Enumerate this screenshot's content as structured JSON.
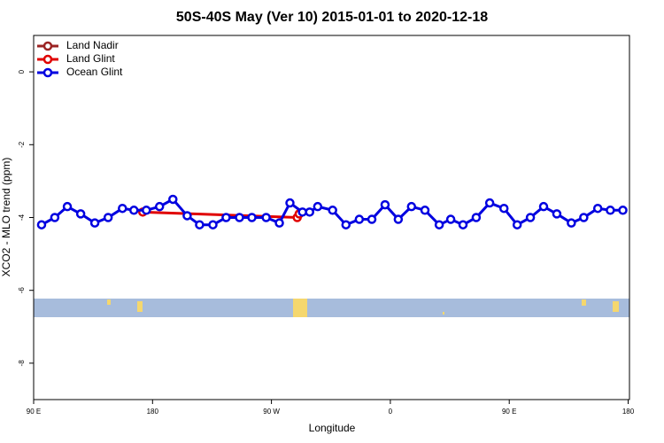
{
  "chart_data": {
    "type": "line",
    "title": "50S-40S May (Ver 10)   2015-01-01 to 2020-12-18",
    "x_label": "Longitude",
    "y_label": "XCO2 - MLO trend (ppm)",
    "xlim": [
      90,
      541
    ],
    "ylim": [
      -9,
      1
    ],
    "xticks": [
      {
        "value": 90,
        "label": "90 E"
      },
      180,
      {
        "value": 270,
        "label": "90 W"
      },
      {
        "value": 360,
        "label": "0"
      },
      {
        "value": 450,
        "label": "90 E"
      },
      {
        "value": 540,
        "label": "180"
      }
    ],
    "yticks": [
      -8,
      -6,
      -4,
      -2,
      0
    ],
    "legend": "top-left",
    "series": [
      {
        "name": "Land Nadir",
        "color": "#9b2323",
        "x": [],
        "values": []
      },
      {
        "name": "Land Glint",
        "color": "#e00000",
        "x": [
          172.6,
          289.5,
          291
        ],
        "values": [
          -3.85,
          -4.0,
          -3.9
        ]
      },
      {
        "name": "Ocean Glint",
        "color": "#0000e0",
        "x": [
          96,
          106,
          115.5,
          125.6,
          136.3,
          146.4,
          157.2,
          165.9,
          175.3,
          185.3,
          195.4,
          206.2,
          215.6,
          225.7,
          235.7,
          245.8,
          255.2,
          266,
          276,
          284,
          293.5,
          298.9,
          305,
          316.3,
          326.4,
          336.5,
          346,
          356,
          366,
          376,
          386.2,
          397,
          405.7,
          415,
          425,
          435.2,
          446,
          456,
          466,
          476,
          486,
          497,
          506.4,
          517,
          526.5,
          536
        ],
        "values": [
          -4.2,
          -4.0,
          -3.7,
          -3.9,
          -4.15,
          -4.0,
          -3.75,
          -3.8,
          -3.8,
          -3.7,
          -3.5,
          -3.95,
          -4.2,
          -4.2,
          -4.0,
          -4.0,
          -4.0,
          -4.0,
          -4.15,
          -3.6,
          -3.85,
          -3.85,
          -3.7,
          -3.8,
          -4.2,
          -4.05,
          -4.05,
          -3.65,
          -4.05,
          -3.7,
          -3.8,
          -4.2,
          -4.05,
          -4.2,
          -4.0,
          -3.6,
          -3.75,
          -4.2,
          -4.0,
          -3.7,
          -3.9,
          -4.15,
          -4.0,
          -3.75,
          -3.8,
          -3.8
        ]
      }
    ]
  }
}
